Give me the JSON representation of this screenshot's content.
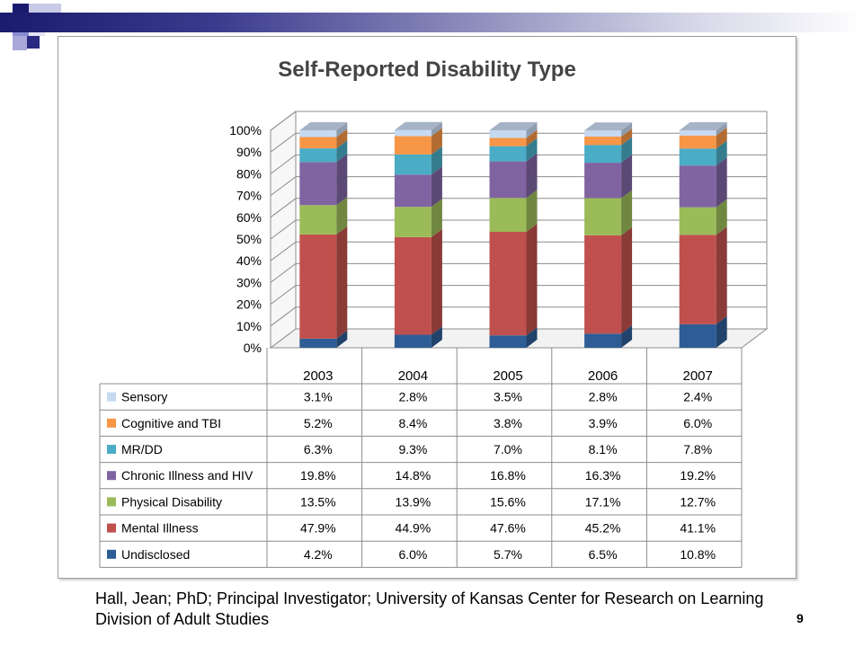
{
  "slide": {
    "footer": "Hall, Jean; PhD; Principal Investigator; University of Kansas Center for Research on Learning Division of Adult Studies",
    "page_number": "9"
  },
  "chart_data": {
    "type": "bar",
    "stacked": true,
    "percent_stacked": true,
    "three_d": true,
    "title": "Self-Reported Disability Type",
    "xlabel": "",
    "ylabel": "",
    "ylim": [
      0,
      100
    ],
    "y_ticks": [
      "0%",
      "10%",
      "20%",
      "30%",
      "40%",
      "50%",
      "60%",
      "70%",
      "80%",
      "90%",
      "100%"
    ],
    "grid": true,
    "legend_placement": "data-table-left",
    "categories": [
      "2003",
      "2004",
      "2005",
      "2006",
      "2007"
    ],
    "series": [
      {
        "name": "Undisclosed",
        "color": "#2e5d95",
        "values": [
          4.2,
          6.0,
          5.7,
          6.5,
          10.8
        ],
        "labels": [
          "4.2%",
          "6.0%",
          "5.7%",
          "6.5%",
          "10.8%"
        ]
      },
      {
        "name": "Mental Illness",
        "color": "#c0504d",
        "values": [
          47.9,
          44.9,
          47.6,
          45.2,
          41.1
        ],
        "labels": [
          "47.9%",
          "44.9%",
          "47.6%",
          "45.2%",
          "41.1%"
        ]
      },
      {
        "name": "Physical Disability",
        "color": "#9bbb59",
        "values": [
          13.5,
          13.9,
          15.6,
          17.1,
          12.7
        ],
        "labels": [
          "13.5%",
          "13.9%",
          "15.6%",
          "17.1%",
          "12.7%"
        ]
      },
      {
        "name": "Chronic Illness and HIV",
        "color": "#8064a2",
        "values": [
          19.8,
          14.8,
          16.8,
          16.3,
          19.2
        ],
        "labels": [
          "19.8%",
          "14.8%",
          "16.8%",
          "16.3%",
          "19.2%"
        ]
      },
      {
        "name": "MR/DD",
        "color": "#4bacc6",
        "values": [
          6.3,
          9.3,
          7.0,
          8.1,
          7.8
        ],
        "labels": [
          "6.3%",
          "9.3%",
          "7.0%",
          "8.1%",
          "7.8%"
        ]
      },
      {
        "name": "Cognitive and TBI",
        "color": "#f79646",
        "values": [
          5.2,
          8.4,
          3.8,
          3.9,
          6.0
        ],
        "labels": [
          "5.2%",
          "8.4%",
          "3.8%",
          "3.9%",
          "6.0%"
        ]
      },
      {
        "name": "Sensory",
        "color": "#c6d9f1",
        "values": [
          3.1,
          2.8,
          3.5,
          2.8,
          2.4
        ],
        "labels": [
          "3.1%",
          "2.8%",
          "3.5%",
          "2.8%",
          "2.4%"
        ]
      }
    ]
  }
}
